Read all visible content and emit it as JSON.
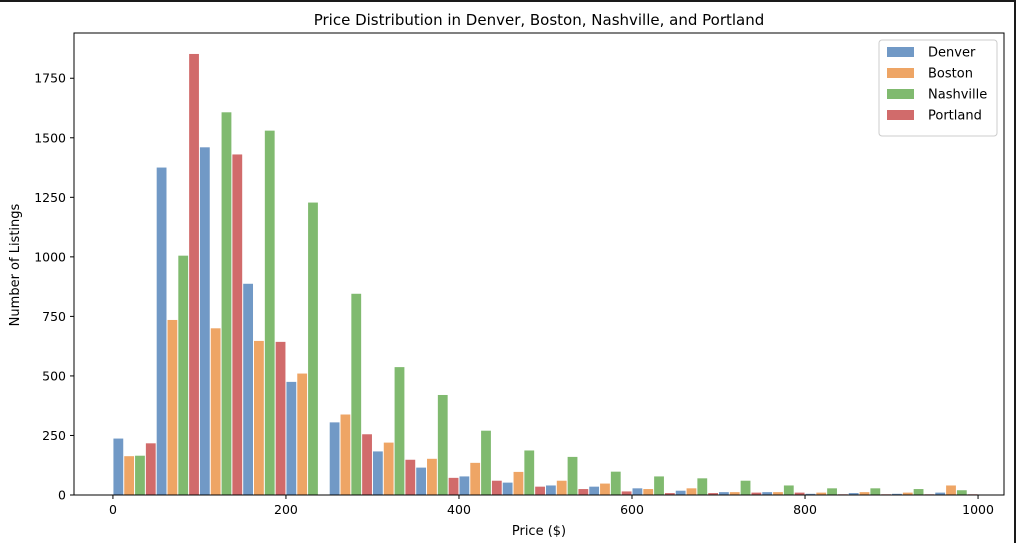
{
  "chart_data": {
    "type": "bar",
    "title": "Price Distribution in Denver, Boston, Nashville, and Portland",
    "xlabel": "Price ($)",
    "ylabel": "Number of Listings",
    "xlim": [
      -45,
      1030
    ],
    "ylim": [
      0,
      1940
    ],
    "xticks": [
      0,
      200,
      400,
      600,
      800,
      1000
    ],
    "yticks": [
      0,
      250,
      500,
      750,
      1000,
      1250,
      1500,
      1750
    ],
    "bin_width": 50,
    "bin_starts": [
      0,
      50,
      100,
      150,
      200,
      250,
      300,
      350,
      400,
      450,
      500,
      550,
      600,
      650,
      700,
      750,
      800,
      850,
      900,
      950
    ],
    "legend_position": "top-right",
    "grid": false,
    "series": [
      {
        "name": "Denver",
        "color": "#7199c6",
        "values": [
          237,
          1375,
          1460,
          887,
          475,
          305,
          183,
          115,
          78,
          52,
          40,
          35,
          28,
          18,
          12,
          12,
          5,
          8,
          5,
          10
        ]
      },
      {
        "name": "Boston",
        "color": "#eea565",
        "values": [
          163,
          735,
          700,
          647,
          510,
          338,
          220,
          152,
          135,
          97,
          60,
          48,
          25,
          28,
          12,
          12,
          10,
          12,
          10,
          40
        ]
      },
      {
        "name": "Nashville",
        "color": "#80ba6f",
        "values": [
          165,
          1005,
          1607,
          1530,
          1228,
          845,
          537,
          420,
          270,
          187,
          160,
          98,
          78,
          70,
          60,
          40,
          28,
          28,
          25,
          20
        ]
      },
      {
        "name": "Portland",
        "color": "#d16b6b",
        "values": [
          217,
          1852,
          1430,
          643,
          0,
          255,
          148,
          72,
          60,
          35,
          25,
          15,
          8,
          8,
          10,
          10,
          3,
          3,
          3,
          3
        ]
      }
    ]
  }
}
